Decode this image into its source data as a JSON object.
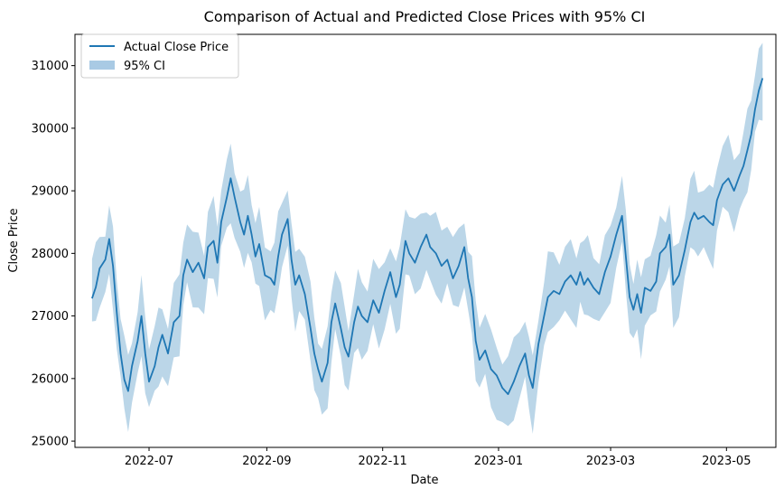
{
  "chart_data": {
    "type": "line",
    "title": "Comparison of Actual and Predicted Close Prices with 95% CI",
    "xlabel": "Date",
    "ylabel": "Close Price",
    "xlim": [
      "2022-05-23",
      "2023-05-27"
    ],
    "ylim": [
      24900,
      31500
    ],
    "x_ticks": [
      {
        "date": "2022-07-01",
        "label": "2022-07"
      },
      {
        "date": "2022-09-01",
        "label": "2022-09"
      },
      {
        "date": "2022-11-01",
        "label": "2022-11"
      },
      {
        "date": "2023-01-01",
        "label": "2023-01"
      },
      {
        "date": "2023-03-01",
        "label": "2023-03"
      },
      {
        "date": "2023-05-01",
        "label": "2023-05"
      }
    ],
    "y_ticks": [
      {
        "value": 25000,
        "label": "25000"
      },
      {
        "value": 26000,
        "label": "26000"
      },
      {
        "value": 27000,
        "label": "27000"
      },
      {
        "value": 28000,
        "label": "28000"
      },
      {
        "value": 29000,
        "label": "29000"
      },
      {
        "value": 30000,
        "label": "30000"
      },
      {
        "value": 31000,
        "label": "31000"
      }
    ],
    "grid": false,
    "legend_position": "top-left",
    "legend": [
      {
        "label": "Actual Close Price",
        "kind": "line",
        "color": "#1f77b4"
      },
      {
        "label": "95% CI",
        "kind": "patch",
        "color": "#a9cae4"
      }
    ],
    "series": [
      {
        "name": "Actual Close Price",
        "color": "#1f77b4",
        "points": [
          [
            "2022-06-01",
            27280
          ],
          [
            "2022-06-03",
            27460
          ],
          [
            "2022-06-05",
            27760
          ],
          [
            "2022-06-08",
            27900
          ],
          [
            "2022-06-10",
            28230
          ],
          [
            "2022-06-12",
            27800
          ],
          [
            "2022-06-14",
            27050
          ],
          [
            "2022-06-16",
            26400
          ],
          [
            "2022-06-18",
            25980
          ],
          [
            "2022-06-20",
            25800
          ],
          [
            "2022-06-22",
            26200
          ],
          [
            "2022-06-25",
            26600
          ],
          [
            "2022-06-27",
            27000
          ],
          [
            "2022-06-29",
            26400
          ],
          [
            "2022-07-01",
            25950
          ],
          [
            "2022-07-04",
            26200
          ],
          [
            "2022-07-06",
            26500
          ],
          [
            "2022-07-08",
            26700
          ],
          [
            "2022-07-11",
            26400
          ],
          [
            "2022-07-14",
            26900
          ],
          [
            "2022-07-17",
            27000
          ],
          [
            "2022-07-19",
            27650
          ],
          [
            "2022-07-21",
            27900
          ],
          [
            "2022-07-24",
            27700
          ],
          [
            "2022-07-27",
            27850
          ],
          [
            "2022-07-30",
            27600
          ],
          [
            "2022-08-01",
            28100
          ],
          [
            "2022-08-04",
            28200
          ],
          [
            "2022-08-06",
            27850
          ],
          [
            "2022-08-08",
            28500
          ],
          [
            "2022-08-11",
            28900
          ],
          [
            "2022-08-13",
            29200
          ],
          [
            "2022-08-15",
            28900
          ],
          [
            "2022-08-18",
            28500
          ],
          [
            "2022-08-20",
            28300
          ],
          [
            "2022-08-22",
            28600
          ],
          [
            "2022-08-24",
            28300
          ],
          [
            "2022-08-26",
            27950
          ],
          [
            "2022-08-28",
            28150
          ],
          [
            "2022-08-31",
            27650
          ],
          [
            "2022-09-03",
            27600
          ],
          [
            "2022-09-05",
            27500
          ],
          [
            "2022-09-07",
            27950
          ],
          [
            "2022-09-09",
            28300
          ],
          [
            "2022-09-12",
            28550
          ],
          [
            "2022-09-14",
            27900
          ],
          [
            "2022-09-16",
            27500
          ],
          [
            "2022-09-18",
            27650
          ],
          [
            "2022-09-21",
            27350
          ],
          [
            "2022-09-24",
            26800
          ],
          [
            "2022-09-26",
            26400
          ],
          [
            "2022-09-28",
            26150
          ],
          [
            "2022-09-30",
            25950
          ],
          [
            "2022-10-03",
            26250
          ],
          [
            "2022-10-05",
            26900
          ],
          [
            "2022-10-07",
            27200
          ],
          [
            "2022-10-10",
            26800
          ],
          [
            "2022-10-12",
            26500
          ],
          [
            "2022-10-14",
            26350
          ],
          [
            "2022-10-17",
            26900
          ],
          [
            "2022-10-19",
            27150
          ],
          [
            "2022-10-21",
            27000
          ],
          [
            "2022-10-24",
            26900
          ],
          [
            "2022-10-27",
            27250
          ],
          [
            "2022-10-30",
            27050
          ],
          [
            "2022-11-02",
            27400
          ],
          [
            "2022-11-05",
            27700
          ],
          [
            "2022-11-08",
            27300
          ],
          [
            "2022-11-10",
            27500
          ],
          [
            "2022-11-13",
            28200
          ],
          [
            "2022-11-15",
            28000
          ],
          [
            "2022-11-18",
            27850
          ],
          [
            "2022-11-21",
            28100
          ],
          [
            "2022-11-24",
            28300
          ],
          [
            "2022-11-26",
            28100
          ],
          [
            "2022-11-29",
            28000
          ],
          [
            "2022-12-02",
            27800
          ],
          [
            "2022-12-05",
            27900
          ],
          [
            "2022-12-08",
            27600
          ],
          [
            "2022-12-11",
            27800
          ],
          [
            "2022-12-14",
            28100
          ],
          [
            "2022-12-16",
            27600
          ],
          [
            "2022-12-18",
            27300
          ],
          [
            "2022-12-20",
            26600
          ],
          [
            "2022-12-22",
            26300
          ],
          [
            "2022-12-25",
            26450
          ],
          [
            "2022-12-28",
            26150
          ],
          [
            "2022-12-31",
            26050
          ],
          [
            "2023-01-03",
            25850
          ],
          [
            "2023-01-06",
            25750
          ],
          [
            "2023-01-09",
            25950
          ],
          [
            "2023-01-12",
            26200
          ],
          [
            "2023-01-15",
            26400
          ],
          [
            "2023-01-17",
            26050
          ],
          [
            "2023-01-19",
            25850
          ],
          [
            "2023-01-22",
            26550
          ],
          [
            "2023-01-25",
            27000
          ],
          [
            "2023-01-27",
            27300
          ],
          [
            "2023-01-30",
            27400
          ],
          [
            "2023-02-02",
            27350
          ],
          [
            "2023-02-05",
            27550
          ],
          [
            "2023-02-08",
            27650
          ],
          [
            "2023-02-11",
            27500
          ],
          [
            "2023-02-13",
            27700
          ],
          [
            "2023-02-15",
            27500
          ],
          [
            "2023-02-17",
            27600
          ],
          [
            "2023-02-20",
            27450
          ],
          [
            "2023-02-23",
            27350
          ],
          [
            "2023-02-26",
            27700
          ],
          [
            "2023-03-01",
            27950
          ],
          [
            "2023-03-04",
            28300
          ],
          [
            "2023-03-07",
            28600
          ],
          [
            "2023-03-09",
            27950
          ],
          [
            "2023-03-11",
            27300
          ],
          [
            "2023-03-13",
            27100
          ],
          [
            "2023-03-15",
            27350
          ],
          [
            "2023-03-17",
            27050
          ],
          [
            "2023-03-19",
            27450
          ],
          [
            "2023-03-22",
            27400
          ],
          [
            "2023-03-25",
            27550
          ],
          [
            "2023-03-27",
            28000
          ],
          [
            "2023-03-30",
            28100
          ],
          [
            "2023-04-01",
            28300
          ],
          [
            "2023-04-03",
            27500
          ],
          [
            "2023-04-06",
            27650
          ],
          [
            "2023-04-09",
            28050
          ],
          [
            "2023-04-12",
            28500
          ],
          [
            "2023-04-14",
            28650
          ],
          [
            "2023-04-16",
            28550
          ],
          [
            "2023-04-19",
            28600
          ],
          [
            "2023-04-22",
            28500
          ],
          [
            "2023-04-24",
            28450
          ],
          [
            "2023-04-26",
            28850
          ],
          [
            "2023-04-29",
            29100
          ],
          [
            "2023-05-02",
            29200
          ],
          [
            "2023-05-05",
            29000
          ],
          [
            "2023-05-08",
            29250
          ],
          [
            "2023-05-10",
            29400
          ],
          [
            "2023-05-12",
            29650
          ],
          [
            "2023-05-14",
            29900
          ],
          [
            "2023-05-16",
            30300
          ],
          [
            "2023-05-18",
            30600
          ],
          [
            "2023-05-20",
            30800
          ]
        ]
      }
    ],
    "band": {
      "name": "95% CI",
      "color": "#1f77b4",
      "opacity": 0.3,
      "half_width": 550
    }
  }
}
